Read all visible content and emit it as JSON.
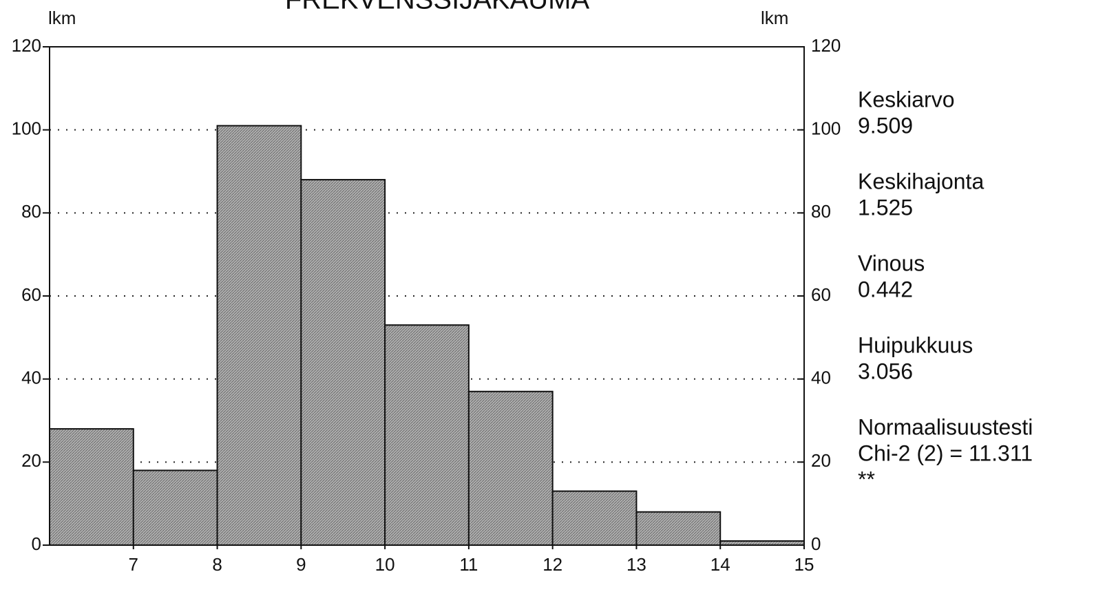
{
  "chart_data": {
    "type": "histogram",
    "title": "FREKVENSSIJAKAUMA",
    "ylabel": "lkm",
    "y2label": "lkm",
    "bins": [
      6,
      7,
      8,
      9,
      10,
      11,
      12,
      13,
      14,
      15
    ],
    "counts": [
      28,
      18,
      101,
      88,
      53,
      37,
      13,
      8,
      1
    ],
    "color": "#9a9a9a",
    "xlim": [
      6,
      15
    ],
    "xticks": [
      7,
      8,
      9,
      10,
      11,
      12,
      13,
      14,
      15
    ],
    "ylim": [
      0,
      120
    ],
    "yticks": [
      0,
      20,
      40,
      60,
      80,
      100,
      120
    ],
    "y2lim": [
      0,
      120
    ],
    "y2ticks": [
      0,
      20,
      40,
      60,
      80,
      100,
      120
    ],
    "grid": true,
    "annotations": [
      [
        "Keskiarvo",
        "9.509"
      ],
      [
        "Keskihajonta",
        "1.525"
      ],
      [
        "Vinous",
        "0.442"
      ],
      [
        "Huipukkuus",
        "3.056"
      ],
      [
        "Normaalisuustesti",
        "Chi-2 (2) = 11.311",
        "**"
      ]
    ]
  }
}
